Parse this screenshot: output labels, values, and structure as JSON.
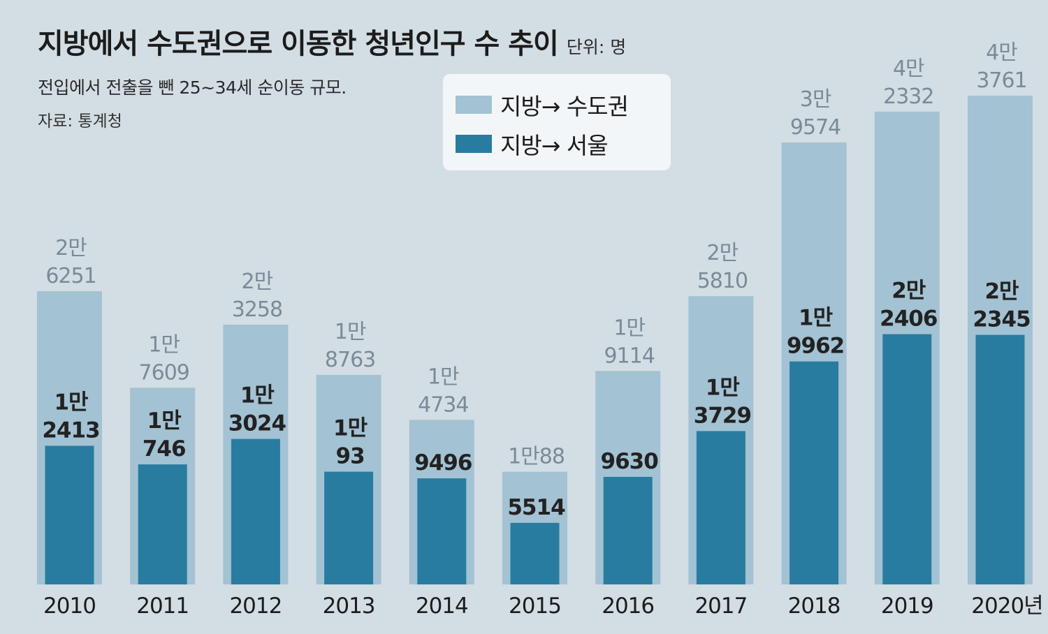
{
  "header": {
    "title": "지방에서 수도권으로 이동한 청년인구 수 추이",
    "unit": "단위: 명",
    "subtitle": "전입에서 전출을 뺀 25~34세 순이동 규모.",
    "source": "자료: 통계청"
  },
  "legend": [
    {
      "label": "지방→ 수도권",
      "color": "#a3c2d3"
    },
    {
      "label": "지방→ 서울",
      "color": "#287ca0"
    }
  ],
  "chart_data": {
    "type": "bar",
    "categories": [
      "2010",
      "2011",
      "2012",
      "2013",
      "2014",
      "2015",
      "2016",
      "2017",
      "2018",
      "2019",
      "2020년"
    ],
    "series": [
      {
        "name": "지방→ 수도권",
        "color": "#a3c2d3",
        "values": [
          26251,
          17609,
          23258,
          18763,
          14734,
          10088,
          19114,
          25810,
          39574,
          42332,
          43761
        ],
        "labels": [
          [
            "2만",
            "6251"
          ],
          [
            "1만",
            "7609"
          ],
          [
            "2만",
            "3258"
          ],
          [
            "1만",
            "8763"
          ],
          [
            "1만",
            "4734"
          ],
          [
            "1만88"
          ],
          [
            "1만",
            "9114"
          ],
          [
            "2만",
            "5810"
          ],
          [
            "3만",
            "9574"
          ],
          [
            "4만",
            "2332"
          ],
          [
            "4만",
            "3761"
          ]
        ]
      },
      {
        "name": "지방→ 서울",
        "color": "#287ca0",
        "values": [
          12413,
          10746,
          13024,
          10093,
          9496,
          5514,
          9630,
          13729,
          19962,
          22406,
          22345
        ],
        "labels": [
          [
            "1만",
            "2413"
          ],
          [
            "1만",
            "746"
          ],
          [
            "1만",
            "3024"
          ],
          [
            "1만",
            "93"
          ],
          [
            "9496"
          ],
          [
            "5514"
          ],
          [
            "9630"
          ],
          [
            "1만",
            "3729"
          ],
          [
            "1만",
            "9962"
          ],
          [
            "2만",
            "2406"
          ],
          [
            "2만",
            "2345"
          ]
        ]
      }
    ],
    "xlabel": "",
    "ylabel": "",
    "ylim": [
      0,
      45000
    ],
    "grid": false,
    "legend_position": "top-center"
  }
}
